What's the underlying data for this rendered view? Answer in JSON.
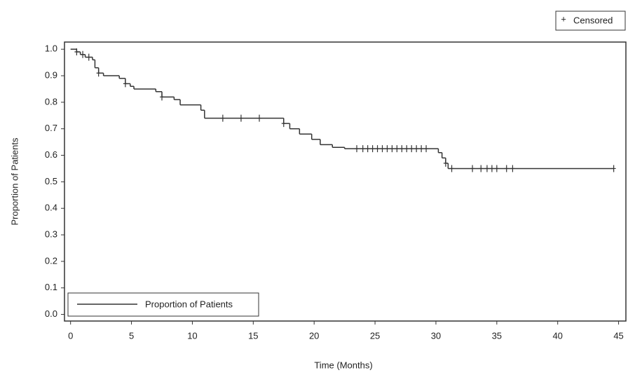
{
  "chart_data": {
    "type": "step",
    "xlabel": "Time (Months)",
    "ylabel": "Proportion of Patients",
    "xlim": [
      -0.5,
      45.6
    ],
    "ylim": [
      -0.025,
      1.027
    ],
    "xticks": [
      0,
      5,
      10,
      15,
      20,
      25,
      30,
      35,
      40,
      45
    ],
    "yticks": [
      {
        "value": 0,
        "label": "0.0"
      },
      0.1,
      0.2,
      0.3,
      0.4,
      0.5,
      0.6,
      0.7,
      0.8,
      0.9,
      {
        "value": 1,
        "label": "1.0"
      }
    ],
    "series": [
      {
        "name": "Proportion of Patients",
        "color": "#333333",
        "x": [
          0,
          0.5,
          0.8,
          1.2,
          1.8,
          2.0,
          2.3,
          2.7,
          4.0,
          4.5,
          4.9,
          5.2,
          7.0,
          7.5,
          8.5,
          9.0,
          10.7,
          11.0,
          17.5,
          18.0,
          18.8,
          19.8,
          20.5,
          21.5,
          22.5,
          30.2,
          30.5,
          30.8,
          31.0,
          44.6
        ],
        "values": [
          1.0,
          0.99,
          0.98,
          0.97,
          0.96,
          0.93,
          0.91,
          0.9,
          0.89,
          0.87,
          0.86,
          0.85,
          0.84,
          0.82,
          0.81,
          0.79,
          0.77,
          0.74,
          0.72,
          0.7,
          0.68,
          0.66,
          0.64,
          0.63,
          0.625,
          0.61,
          0.59,
          0.57,
          0.55,
          0.55
        ]
      },
      {
        "name": "Censored",
        "color": "#333333",
        "x": [
          0.5,
          1.0,
          1.5,
          2.3,
          4.5,
          7.5,
          12.5,
          14,
          15.5,
          17.5,
          23.5,
          24,
          24.4,
          24.8,
          25.2,
          25.6,
          26,
          26.4,
          26.8,
          27.2,
          27.6,
          28,
          28.4,
          28.8,
          29.2,
          30.8,
          31.3,
          33,
          33.7,
          34.2,
          34.6,
          35.0,
          35.8,
          36.3,
          44.6
        ],
        "values": [
          0.99,
          0.98,
          0.97,
          0.91,
          0.87,
          0.82,
          0.74,
          0.74,
          0.74,
          0.72,
          0.625,
          0.625,
          0.625,
          0.625,
          0.625,
          0.625,
          0.625,
          0.625,
          0.625,
          0.625,
          0.625,
          0.625,
          0.625,
          0.625,
          0.625,
          0.57,
          0.55,
          0.55,
          0.55,
          0.55,
          0.55,
          0.55,
          0.55,
          0.55,
          0.55
        ]
      }
    ]
  }
}
